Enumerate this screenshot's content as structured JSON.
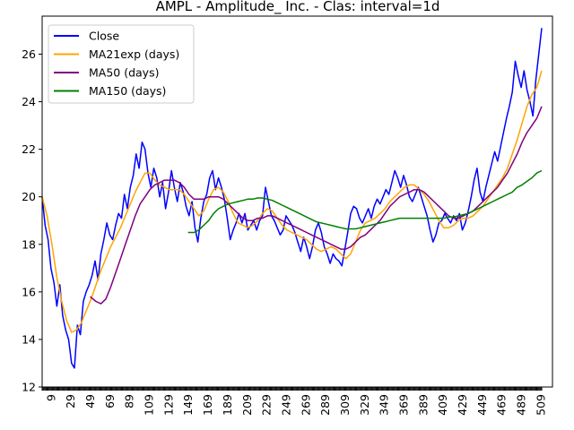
{
  "chart_data": {
    "type": "line",
    "title": "AMPL - Amplitude_ Inc. - Clas: interval=1d",
    "xlabel": "",
    "ylabel": "",
    "xlim": [
      0,
      521
    ],
    "ylim": [
      12,
      27.6
    ],
    "y_ticks": [
      12,
      14,
      16,
      18,
      20,
      22,
      24,
      26
    ],
    "x_ticks": [
      9,
      29,
      49,
      69,
      89,
      109,
      129,
      149,
      169,
      189,
      209,
      229,
      249,
      269,
      289,
      309,
      329,
      349,
      369,
      389,
      409,
      429,
      449,
      469,
      489,
      509
    ],
    "grid": false,
    "legend": "top-left",
    "series": [
      {
        "name": "Close",
        "color": "#0000ff",
        "x": [
          0,
          3,
          6,
          9,
          12,
          15,
          18,
          21,
          24,
          27,
          30,
          33,
          36,
          39,
          42,
          45,
          48,
          51,
          54,
          57,
          60,
          63,
          66,
          69,
          72,
          75,
          78,
          81,
          84,
          87,
          90,
          93,
          96,
          99,
          102,
          105,
          108,
          111,
          114,
          117,
          120,
          123,
          126,
          129,
          132,
          135,
          138,
          141,
          144,
          147,
          150,
          153,
          156,
          159,
          162,
          165,
          168,
          171,
          174,
          177,
          180,
          183,
          186,
          189,
          192,
          195,
          198,
          201,
          204,
          207,
          210,
          213,
          216,
          219,
          222,
          225,
          228,
          231,
          234,
          237,
          240,
          243,
          246,
          249,
          252,
          255,
          258,
          261,
          264,
          267,
          270,
          273,
          276,
          279,
          282,
          285,
          288,
          291,
          294,
          297,
          300,
          303,
          306,
          309,
          312,
          315,
          318,
          321,
          324,
          327,
          330,
          333,
          336,
          339,
          342,
          345,
          348,
          351,
          354,
          357,
          360,
          363,
          366,
          369,
          372,
          375,
          378,
          381,
          384,
          387,
          390,
          393,
          396,
          399,
          402,
          405,
          408,
          411,
          414,
          417,
          420,
          423,
          426,
          429,
          432,
          435,
          438,
          441,
          444,
          447,
          450,
          453,
          456,
          459,
          462,
          465,
          468,
          471,
          474,
          477,
          480,
          483,
          486,
          489,
          492,
          495,
          498,
          501,
          504,
          507,
          510
        ],
        "y": [
          20.0,
          18.8,
          18.2,
          17.0,
          16.4,
          15.4,
          16.3,
          15.0,
          14.4,
          14.0,
          13.0,
          12.8,
          14.6,
          14.2,
          15.6,
          16.0,
          16.3,
          16.7,
          17.3,
          16.5,
          17.6,
          18.2,
          18.9,
          18.4,
          18.2,
          18.8,
          19.3,
          19.1,
          20.1,
          19.5,
          20.4,
          20.9,
          21.8,
          21.2,
          22.3,
          22.0,
          21.0,
          20.4,
          21.2,
          20.8,
          20.0,
          20.6,
          19.5,
          20.2,
          21.1,
          20.4,
          19.8,
          20.6,
          20.2,
          19.6,
          19.2,
          19.8,
          18.7,
          18.1,
          19.1,
          19.8,
          20.1,
          20.8,
          21.1,
          20.3,
          20.8,
          20.4,
          19.9,
          19.1,
          18.2,
          18.6,
          18.9,
          19.3,
          18.9,
          19.3,
          18.6,
          18.8,
          19.0,
          18.6,
          19.0,
          19.2,
          20.4,
          19.8,
          19.2,
          19.0,
          18.7,
          18.4,
          18.6,
          19.2,
          19.0,
          18.8,
          18.5,
          18.1,
          17.7,
          18.3,
          17.9,
          17.4,
          17.9,
          18.6,
          18.9,
          18.5,
          17.9,
          17.6,
          17.2,
          17.6,
          17.4,
          17.3,
          17.1,
          17.8,
          18.5,
          19.3,
          19.6,
          19.5,
          19.1,
          18.9,
          19.2,
          19.5,
          19.1,
          19.6,
          19.9,
          19.7,
          20.0,
          20.3,
          20.1,
          20.6,
          21.1,
          20.8,
          20.4,
          20.9,
          20.5,
          20.0,
          19.8,
          20.1,
          20.4,
          20.0,
          19.6,
          19.2,
          18.6,
          18.1,
          18.4,
          18.9,
          19.0,
          19.3,
          19.1,
          18.9,
          19.2,
          19.0,
          19.3,
          18.6,
          18.9,
          19.4,
          20.0,
          20.7,
          21.2,
          20.2,
          19.8,
          20.4,
          20.9,
          21.4,
          21.9,
          21.5,
          22.1,
          22.7,
          23.3,
          23.8,
          24.4,
          25.7,
          25.1,
          24.6,
          25.3,
          24.5,
          24.0,
          23.4,
          24.9,
          26.0,
          27.1
        ]
      },
      {
        "name": "MA21exp (days)",
        "color": "#ffa500",
        "x": [
          0,
          5,
          10,
          15,
          20,
          25,
          30,
          35,
          40,
          45,
          50,
          55,
          60,
          65,
          70,
          75,
          80,
          85,
          90,
          95,
          100,
          105,
          110,
          115,
          120,
          125,
          130,
          135,
          140,
          145,
          150,
          155,
          160,
          165,
          170,
          175,
          180,
          185,
          190,
          195,
          200,
          205,
          210,
          215,
          220,
          225,
          230,
          235,
          240,
          245,
          250,
          255,
          260,
          265,
          270,
          275,
          280,
          285,
          290,
          295,
          300,
          305,
          310,
          315,
          320,
          325,
          330,
          335,
          340,
          345,
          350,
          355,
          360,
          365,
          370,
          375,
          380,
          385,
          390,
          395,
          400,
          405,
          410,
          415,
          420,
          425,
          430,
          435,
          440,
          445,
          450,
          455,
          460,
          465,
          470,
          475,
          480,
          485,
          490,
          495,
          500,
          505,
          510
        ],
        "y": [
          20.0,
          19.2,
          18.0,
          16.6,
          15.6,
          14.8,
          14.3,
          14.4,
          14.7,
          15.2,
          15.7,
          16.3,
          16.9,
          17.4,
          17.9,
          18.3,
          18.7,
          19.2,
          19.7,
          20.2,
          20.6,
          21.0,
          21.0,
          20.7,
          20.5,
          20.4,
          20.3,
          20.3,
          20.3,
          20.1,
          19.8,
          19.5,
          19.2,
          19.4,
          19.9,
          20.3,
          20.4,
          20.2,
          19.8,
          19.3,
          18.9,
          18.8,
          18.7,
          18.8,
          19.0,
          19.3,
          19.5,
          19.4,
          19.1,
          18.8,
          18.6,
          18.5,
          18.4,
          18.3,
          18.2,
          18.0,
          17.8,
          17.7,
          17.8,
          17.9,
          17.8,
          17.6,
          17.4,
          17.6,
          18.1,
          18.6,
          18.9,
          19.0,
          19.1,
          19.3,
          19.5,
          19.8,
          20.0,
          20.2,
          20.4,
          20.5,
          20.5,
          20.3,
          20.1,
          19.8,
          19.4,
          19.0,
          18.7,
          18.7,
          18.8,
          19.0,
          19.1,
          19.1,
          19.2,
          19.4,
          19.6,
          19.9,
          20.2,
          20.5,
          20.8,
          21.2,
          21.8,
          22.4,
          23.1,
          23.8,
          24.3,
          24.6,
          25.3
        ]
      },
      {
        "name": "MA50 (days)",
        "color": "#800080",
        "x": [
          49,
          55,
          60,
          65,
          70,
          75,
          80,
          85,
          90,
          95,
          100,
          105,
          110,
          115,
          120,
          125,
          130,
          135,
          140,
          145,
          150,
          155,
          160,
          165,
          170,
          175,
          180,
          185,
          190,
          195,
          200,
          205,
          210,
          215,
          220,
          225,
          230,
          235,
          240,
          245,
          250,
          255,
          260,
          265,
          270,
          275,
          280,
          285,
          290,
          295,
          300,
          305,
          310,
          315,
          320,
          325,
          330,
          335,
          340,
          345,
          350,
          355,
          360,
          365,
          370,
          375,
          380,
          385,
          390,
          395,
          400,
          405,
          410,
          415,
          420,
          425,
          430,
          435,
          440,
          445,
          450,
          455,
          460,
          465,
          470,
          475,
          480,
          485,
          490,
          495,
          500,
          505,
          510
        ],
        "y": [
          15.8,
          15.6,
          15.5,
          15.7,
          16.2,
          16.8,
          17.4,
          18.0,
          18.6,
          19.2,
          19.7,
          20.0,
          20.3,
          20.5,
          20.6,
          20.7,
          20.7,
          20.7,
          20.6,
          20.4,
          20.1,
          19.9,
          19.9,
          19.9,
          20.0,
          20.0,
          20.0,
          19.9,
          19.7,
          19.5,
          19.3,
          19.1,
          19.0,
          19.0,
          19.1,
          19.1,
          19.2,
          19.2,
          19.1,
          19.0,
          18.9,
          18.8,
          18.7,
          18.6,
          18.5,
          18.4,
          18.3,
          18.2,
          18.1,
          18.0,
          17.9,
          17.8,
          17.8,
          17.9,
          18.1,
          18.3,
          18.4,
          18.6,
          18.8,
          19.0,
          19.3,
          19.6,
          19.8,
          20.0,
          20.1,
          20.2,
          20.3,
          20.3,
          20.2,
          20.0,
          19.8,
          19.6,
          19.4,
          19.2,
          19.1,
          19.1,
          19.2,
          19.3,
          19.4,
          19.6,
          19.8,
          20.0,
          20.2,
          20.4,
          20.7,
          21.0,
          21.4,
          21.8,
          22.3,
          22.7,
          23.0,
          23.3,
          23.8
        ]
      },
      {
        "name": "MA150 (days)",
        "color": "#008000",
        "x": [
          149,
          155,
          160,
          165,
          170,
          175,
          180,
          185,
          190,
          195,
          200,
          205,
          210,
          215,
          220,
          225,
          230,
          235,
          240,
          245,
          250,
          255,
          260,
          265,
          270,
          275,
          280,
          285,
          290,
          295,
          300,
          305,
          310,
          315,
          320,
          325,
          330,
          335,
          340,
          345,
          350,
          355,
          360,
          365,
          370,
          375,
          380,
          385,
          390,
          395,
          400,
          405,
          410,
          415,
          420,
          425,
          430,
          435,
          440,
          445,
          450,
          455,
          460,
          465,
          470,
          475,
          480,
          485,
          490,
          495,
          500,
          505,
          510
        ],
        "y": [
          18.5,
          18.5,
          18.6,
          18.8,
          19.0,
          19.3,
          19.5,
          19.6,
          19.7,
          19.75,
          19.8,
          19.85,
          19.9,
          19.9,
          19.95,
          19.95,
          19.9,
          19.85,
          19.75,
          19.65,
          19.55,
          19.45,
          19.35,
          19.25,
          19.15,
          19.05,
          18.95,
          18.9,
          18.85,
          18.8,
          18.75,
          18.7,
          18.65,
          18.65,
          18.65,
          18.7,
          18.75,
          18.8,
          18.85,
          18.9,
          18.95,
          19.0,
          19.05,
          19.1,
          19.1,
          19.1,
          19.1,
          19.1,
          19.1,
          19.1,
          19.1,
          19.1,
          19.1,
          19.15,
          19.15,
          19.2,
          19.25,
          19.3,
          19.4,
          19.5,
          19.6,
          19.7,
          19.8,
          19.9,
          20.0,
          20.1,
          20.2,
          20.4,
          20.5,
          20.65,
          20.8,
          21.0,
          21.1
        ]
      }
    ]
  }
}
